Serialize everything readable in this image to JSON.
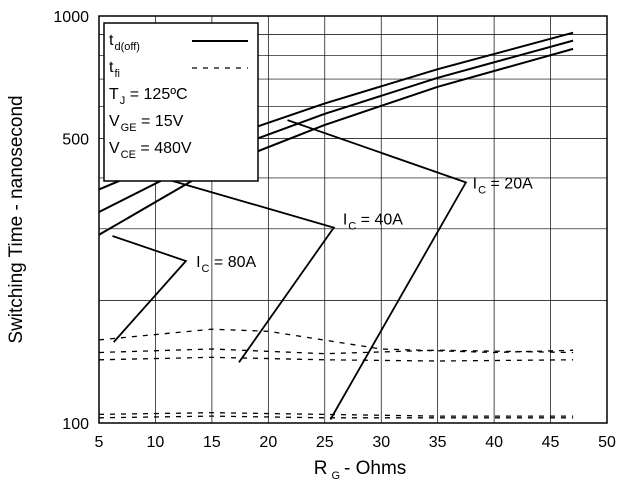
{
  "chart_data": {
    "type": "line",
    "xlabel": {
      "main": "R",
      "sub": "G",
      "rest": "- Ohms"
    },
    "ylabel": "Switching Time - nanosecond",
    "x_scale": "linear",
    "y_scale": "log",
    "xlim": [
      5,
      50
    ],
    "ylim": [
      100,
      1000
    ],
    "x_ticks": [
      "5",
      "10",
      "15",
      "20",
      "25",
      "30",
      "35",
      "40",
      "45",
      "50"
    ],
    "y_ticks": [
      {
        "value": 100,
        "label": "100"
      },
      {
        "value": 500,
        "label": "500"
      },
      {
        "value": 1000,
        "label": "1000"
      }
    ],
    "grid": true,
    "legend": {
      "placement": "top-left",
      "entries": [
        {
          "main": "t",
          "sub": "d(off)",
          "style": "solid"
        },
        {
          "main": "t",
          "sub": "fi",
          "style": "dashed"
        }
      ],
      "conditions": [
        {
          "main": "T",
          "sub": "J",
          "rest": " = 125ºC"
        },
        {
          "main": "V",
          "sub": "GE",
          "rest": " = 15V"
        },
        {
          "main": "V",
          "sub": "CE",
          "rest": " = 480V"
        }
      ]
    },
    "series": [
      {
        "kind": "td_off",
        "style": "solid",
        "points": [
          [
            5,
            375
          ],
          [
            15,
            490
          ],
          [
            25,
            610
          ],
          [
            35,
            740
          ],
          [
            47,
            910
          ]
        ]
      },
      {
        "kind": "td_off",
        "style": "solid",
        "points": [
          [
            5,
            330
          ],
          [
            15,
            455
          ],
          [
            25,
            575
          ],
          [
            35,
            705
          ],
          [
            47,
            870
          ]
        ]
      },
      {
        "kind": "td_off",
        "style": "solid",
        "points": [
          [
            5,
            290
          ],
          [
            15,
            420
          ],
          [
            25,
            540
          ],
          [
            35,
            670
          ],
          [
            47,
            830
          ]
        ]
      },
      {
        "kind": "t_fi",
        "style": "dashed",
        "points": [
          [
            5,
            160
          ],
          [
            15,
            170
          ],
          [
            20,
            168
          ],
          [
            30,
            152
          ],
          [
            40,
            149
          ],
          [
            47,
            151
          ]
        ]
      },
      {
        "kind": "t_fi",
        "style": "dashed",
        "points": [
          [
            5,
            149
          ],
          [
            15,
            152
          ],
          [
            25,
            148
          ],
          [
            35,
            151
          ],
          [
            47,
            149
          ]
        ]
      },
      {
        "kind": "t_fi",
        "style": "dashed",
        "points": [
          [
            5,
            143
          ],
          [
            15,
            145
          ],
          [
            25,
            143
          ],
          [
            35,
            142
          ],
          [
            47,
            143
          ]
        ]
      },
      {
        "kind": "t_fi",
        "style": "dashed",
        "points": [
          [
            5,
            105
          ],
          [
            15,
            106
          ],
          [
            25,
            105
          ],
          [
            35,
            104
          ],
          [
            47,
            104
          ]
        ]
      },
      {
        "kind": "t_fi",
        "style": "dashed",
        "points": [
          [
            5,
            103
          ],
          [
            15,
            104
          ],
          [
            25,
            103
          ],
          [
            35,
            103
          ],
          [
            47,
            103
          ]
        ]
      }
    ],
    "annotations": [
      {
        "main": "I",
        "sub": "C",
        "rest": " = 20A",
        "label_at": [
          38.1,
          390
        ],
        "line": [
          [
            21.7,
            555
          ],
          [
            37.5,
            390
          ],
          [
            25.5,
            102
          ]
        ]
      },
      {
        "main": "I",
        "sub": "C",
        "rest": " = 40A",
        "label_at": [
          26.6,
          318
        ],
        "line": [
          [
            11.3,
            395
          ],
          [
            25.8,
            302
          ],
          [
            17.4,
            141
          ]
        ]
      },
      {
        "main": "I",
        "sub": "C",
        "rest": " = 80A",
        "label_at": [
          13.6,
          250
        ],
        "line": [
          [
            6.2,
            288
          ],
          [
            12.7,
            250
          ],
          [
            6.3,
            158
          ]
        ]
      }
    ]
  }
}
